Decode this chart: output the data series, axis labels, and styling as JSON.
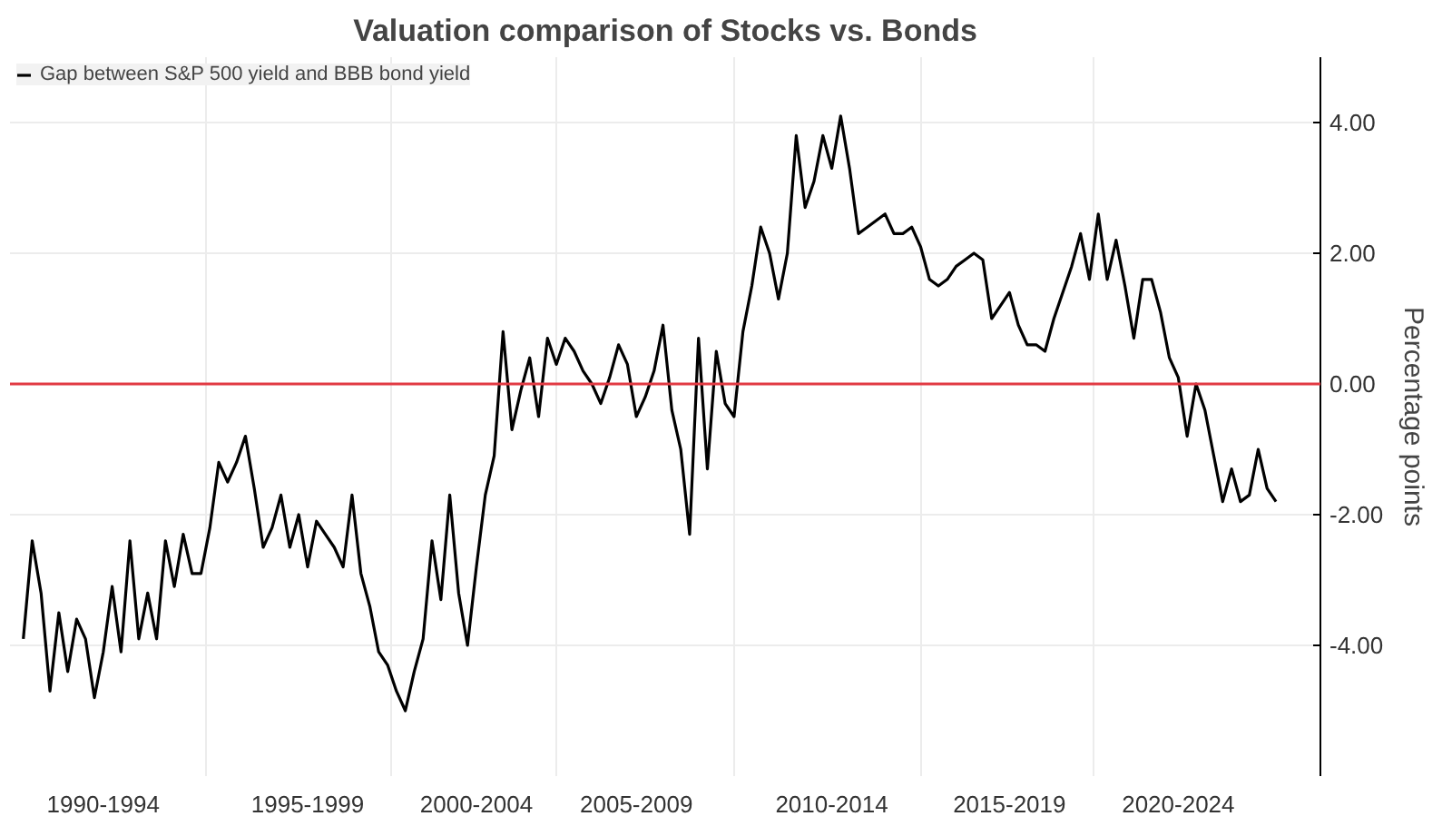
{
  "chart_data": {
    "type": "line",
    "title": "Valuation comparison of Stocks vs. Bonds",
    "ylabel": "Percentage points",
    "categories": [
      null,
      null,
      null,
      null,
      null,
      null,
      null,
      null,
      null,
      "1990-1994",
      null,
      null,
      null,
      null,
      null,
      null,
      null,
      null,
      null,
      null,
      null,
      null,
      null,
      null,
      null,
      null,
      null,
      null,
      null,
      null,
      null,
      null,
      "1995-1999",
      null,
      null,
      null,
      null,
      null,
      null,
      null,
      null,
      null,
      null,
      null,
      null,
      null,
      null,
      null,
      null,
      null,
      null,
      "2000-2004",
      null,
      null,
      null,
      null,
      null,
      null,
      null,
      null,
      null,
      null,
      null,
      null,
      null,
      null,
      null,
      null,
      null,
      "2005-2009",
      null,
      null,
      null,
      null,
      null,
      null,
      null,
      null,
      null,
      null,
      null,
      null,
      null,
      null,
      null,
      null,
      null,
      null,
      null,
      null,
      null,
      "2010-2014",
      null,
      null,
      null,
      null,
      null,
      null,
      null,
      null,
      null,
      null,
      null,
      null,
      null,
      null,
      null,
      null,
      null,
      null,
      null,
      "2015-2019",
      null,
      null,
      null,
      null,
      null,
      null,
      null,
      null,
      null,
      null,
      null,
      null,
      null,
      null,
      null,
      null,
      null,
      null,
      "2020-2024",
      null,
      null,
      null,
      null,
      null,
      null,
      null,
      null,
      null,
      null,
      null
    ],
    "series": [
      {
        "name": "Gap between S&P 500 yield and BBB bond yield",
        "color": "#000000",
        "values": [
          -3.9,
          -2.4,
          -3.2,
          -4.7,
          -3.5,
          -4.4,
          -3.6,
          -3.9,
          -4.8,
          -4.1,
          -3.1,
          -4.1,
          -2.4,
          -3.9,
          -3.2,
          -3.9,
          -2.4,
          -3.1,
          -2.3,
          -2.9,
          -2.9,
          -2.2,
          -1.2,
          -1.5,
          -1.2,
          -0.8,
          -1.6,
          -2.5,
          -2.2,
          -1.7,
          -2.5,
          -2.0,
          -2.8,
          -2.1,
          -2.3,
          -2.5,
          -2.8,
          -1.7,
          -2.9,
          -3.4,
          -4.1,
          -4.3,
          -4.7,
          -5.0,
          -4.4,
          -3.9,
          -2.4,
          -3.3,
          -1.7,
          -3.2,
          -4.0,
          -2.8,
          -1.7,
          -1.1,
          0.8,
          -0.7,
          -0.1,
          0.4,
          -0.5,
          0.7,
          0.3,
          0.7,
          0.5,
          0.2,
          0.0,
          -0.3,
          0.1,
          0.6,
          0.3,
          -0.5,
          -0.2,
          0.2,
          0.9,
          -0.4,
          -1.0,
          -2.3,
          0.7,
          -1.3,
          0.5,
          -0.3,
          -0.5,
          0.8,
          1.5,
          2.4,
          2.0,
          1.3,
          2.0,
          3.8,
          2.7,
          3.1,
          3.8,
          3.3,
          4.1,
          3.3,
          2.3,
          2.4,
          2.5,
          2.6,
          2.3,
          2.3,
          2.4,
          2.1,
          1.6,
          1.5,
          1.6,
          1.8,
          1.9,
          2.0,
          1.9,
          1.0,
          1.2,
          1.4,
          0.9,
          0.6,
          0.6,
          0.5,
          1.0,
          1.4,
          1.8,
          2.3,
          1.6,
          2.6,
          1.6,
          2.2,
          1.5,
          0.7,
          1.6,
          1.6,
          1.1,
          0.4,
          0.1,
          -0.8,
          0.0,
          -0.4,
          -1.1,
          -1.8,
          -1.3,
          -1.8,
          -1.7,
          -1.0,
          -1.6,
          -1.8
        ]
      }
    ],
    "ylim": [
      -6,
      5
    ],
    "yticks": [
      {
        "value": 4,
        "label": "4.00"
      },
      {
        "value": 2,
        "label": "2.00"
      },
      {
        "value": 0,
        "label": "0.00"
      },
      {
        "value": -2,
        "label": "-2.00"
      },
      {
        "value": -4,
        "label": "-4.00"
      }
    ],
    "ref_lines": [
      {
        "axis": "y",
        "value": 0,
        "color": "#e23b44",
        "line_style": "solid"
      }
    ],
    "grid": true,
    "legend": "top left",
    "line_style": "solid",
    "marker": "none"
  }
}
